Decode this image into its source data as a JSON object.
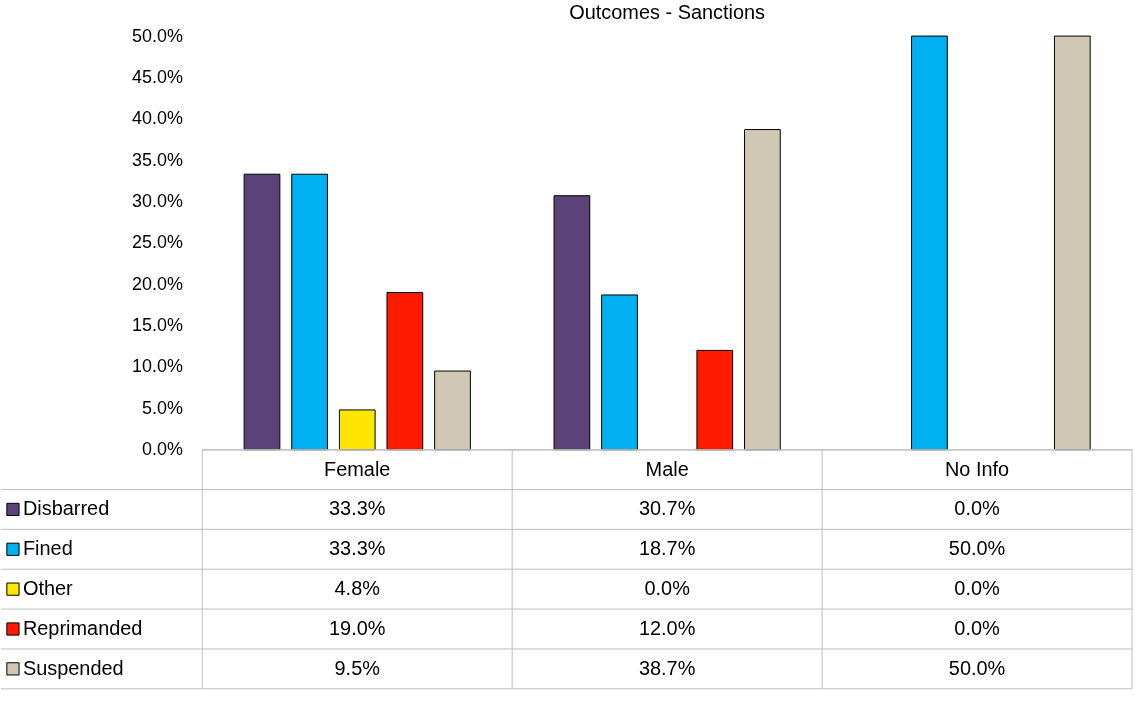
{
  "chart_data": {
    "type": "bar",
    "title": "Outcomes - Sanctions",
    "categories": [
      "Female",
      "Male",
      "No Info"
    ],
    "series": [
      {
        "name": "Disbarred",
        "color": "#5b4279",
        "values": [
          33.3,
          30.7,
          0.0
        ],
        "value_labels": [
          "33.3%",
          "30.7%",
          "0.0%"
        ]
      },
      {
        "name": "Fined",
        "color": "#00b0f0",
        "values": [
          33.3,
          18.7,
          50.0
        ],
        "value_labels": [
          "33.3%",
          "18.7%",
          "50.0%"
        ]
      },
      {
        "name": "Other",
        "color": "#ffe600",
        "values": [
          4.8,
          0.0,
          0.0
        ],
        "value_labels": [
          "4.8%",
          "0.0%",
          "0.0%"
        ]
      },
      {
        "name": "Reprimanded",
        "color": "#ff1a00",
        "values": [
          19.0,
          12.0,
          0.0
        ],
        "value_labels": [
          "19.0%",
          "12.0%",
          "0.0%"
        ]
      },
      {
        "name": "Suspended",
        "color": "#d0c8b4",
        "values": [
          9.5,
          38.7,
          50.0
        ],
        "value_labels": [
          "9.5%",
          "38.7%",
          "50.0%"
        ]
      }
    ],
    "ylim": [
      0,
      50
    ],
    "yticks": [
      {
        "value": 0,
        "label": "0.0%"
      },
      {
        "value": 5,
        "label": "5.0%"
      },
      {
        "value": 10,
        "label": "10.0%"
      },
      {
        "value": 15,
        "label": "15.0%"
      },
      {
        "value": 20,
        "label": "20.0%"
      },
      {
        "value": 25,
        "label": "25.0%"
      },
      {
        "value": 30,
        "label": "30.0%"
      },
      {
        "value": 35,
        "label": "35.0%"
      },
      {
        "value": 40,
        "label": "40.0%"
      },
      {
        "value": 45,
        "label": "45.0%"
      },
      {
        "value": 50,
        "label": "50.0%"
      }
    ],
    "grid": false,
    "legend": "bottom"
  }
}
